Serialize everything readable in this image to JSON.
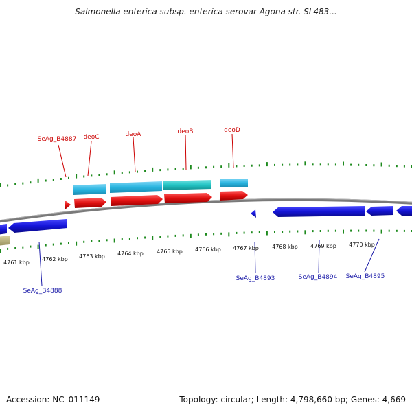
{
  "header": {
    "title": "Salmonella enterica subsp. enterica serovar Agona str. SL483..."
  },
  "scale": {
    "labels": [
      "4761 kbp",
      "4762 kbp",
      "4763 kbp",
      "4764 kbp",
      "4765 kbp",
      "4766 kbp",
      "4767 kbp",
      "4768 kbp",
      "4769 kbp",
      "4770 kbp"
    ]
  },
  "gene_labels": {
    "forward": [
      "SeAg_B4887",
      "deoC",
      "deoA",
      "deoB",
      "deoD"
    ],
    "reverse": [
      "SeAg_B4888",
      "SeAg_B4893",
      "SeAg_B4894",
      "SeAg_B4895"
    ]
  },
  "footer": {
    "accession": "Accession: NC_011149",
    "summary": "Topology: circular; Length: 4,798,660 bp; Genes: 4,669"
  },
  "colors": {
    "forward_cds": "#e01010",
    "forward_feature": "#29b5e0",
    "forward_feature_alt": "#22c4c4",
    "reverse_cds": "#1515d8",
    "other_feature": "#b8b07a",
    "backbone": "#7a7a7a",
    "ticks": "#1e8a1e"
  }
}
